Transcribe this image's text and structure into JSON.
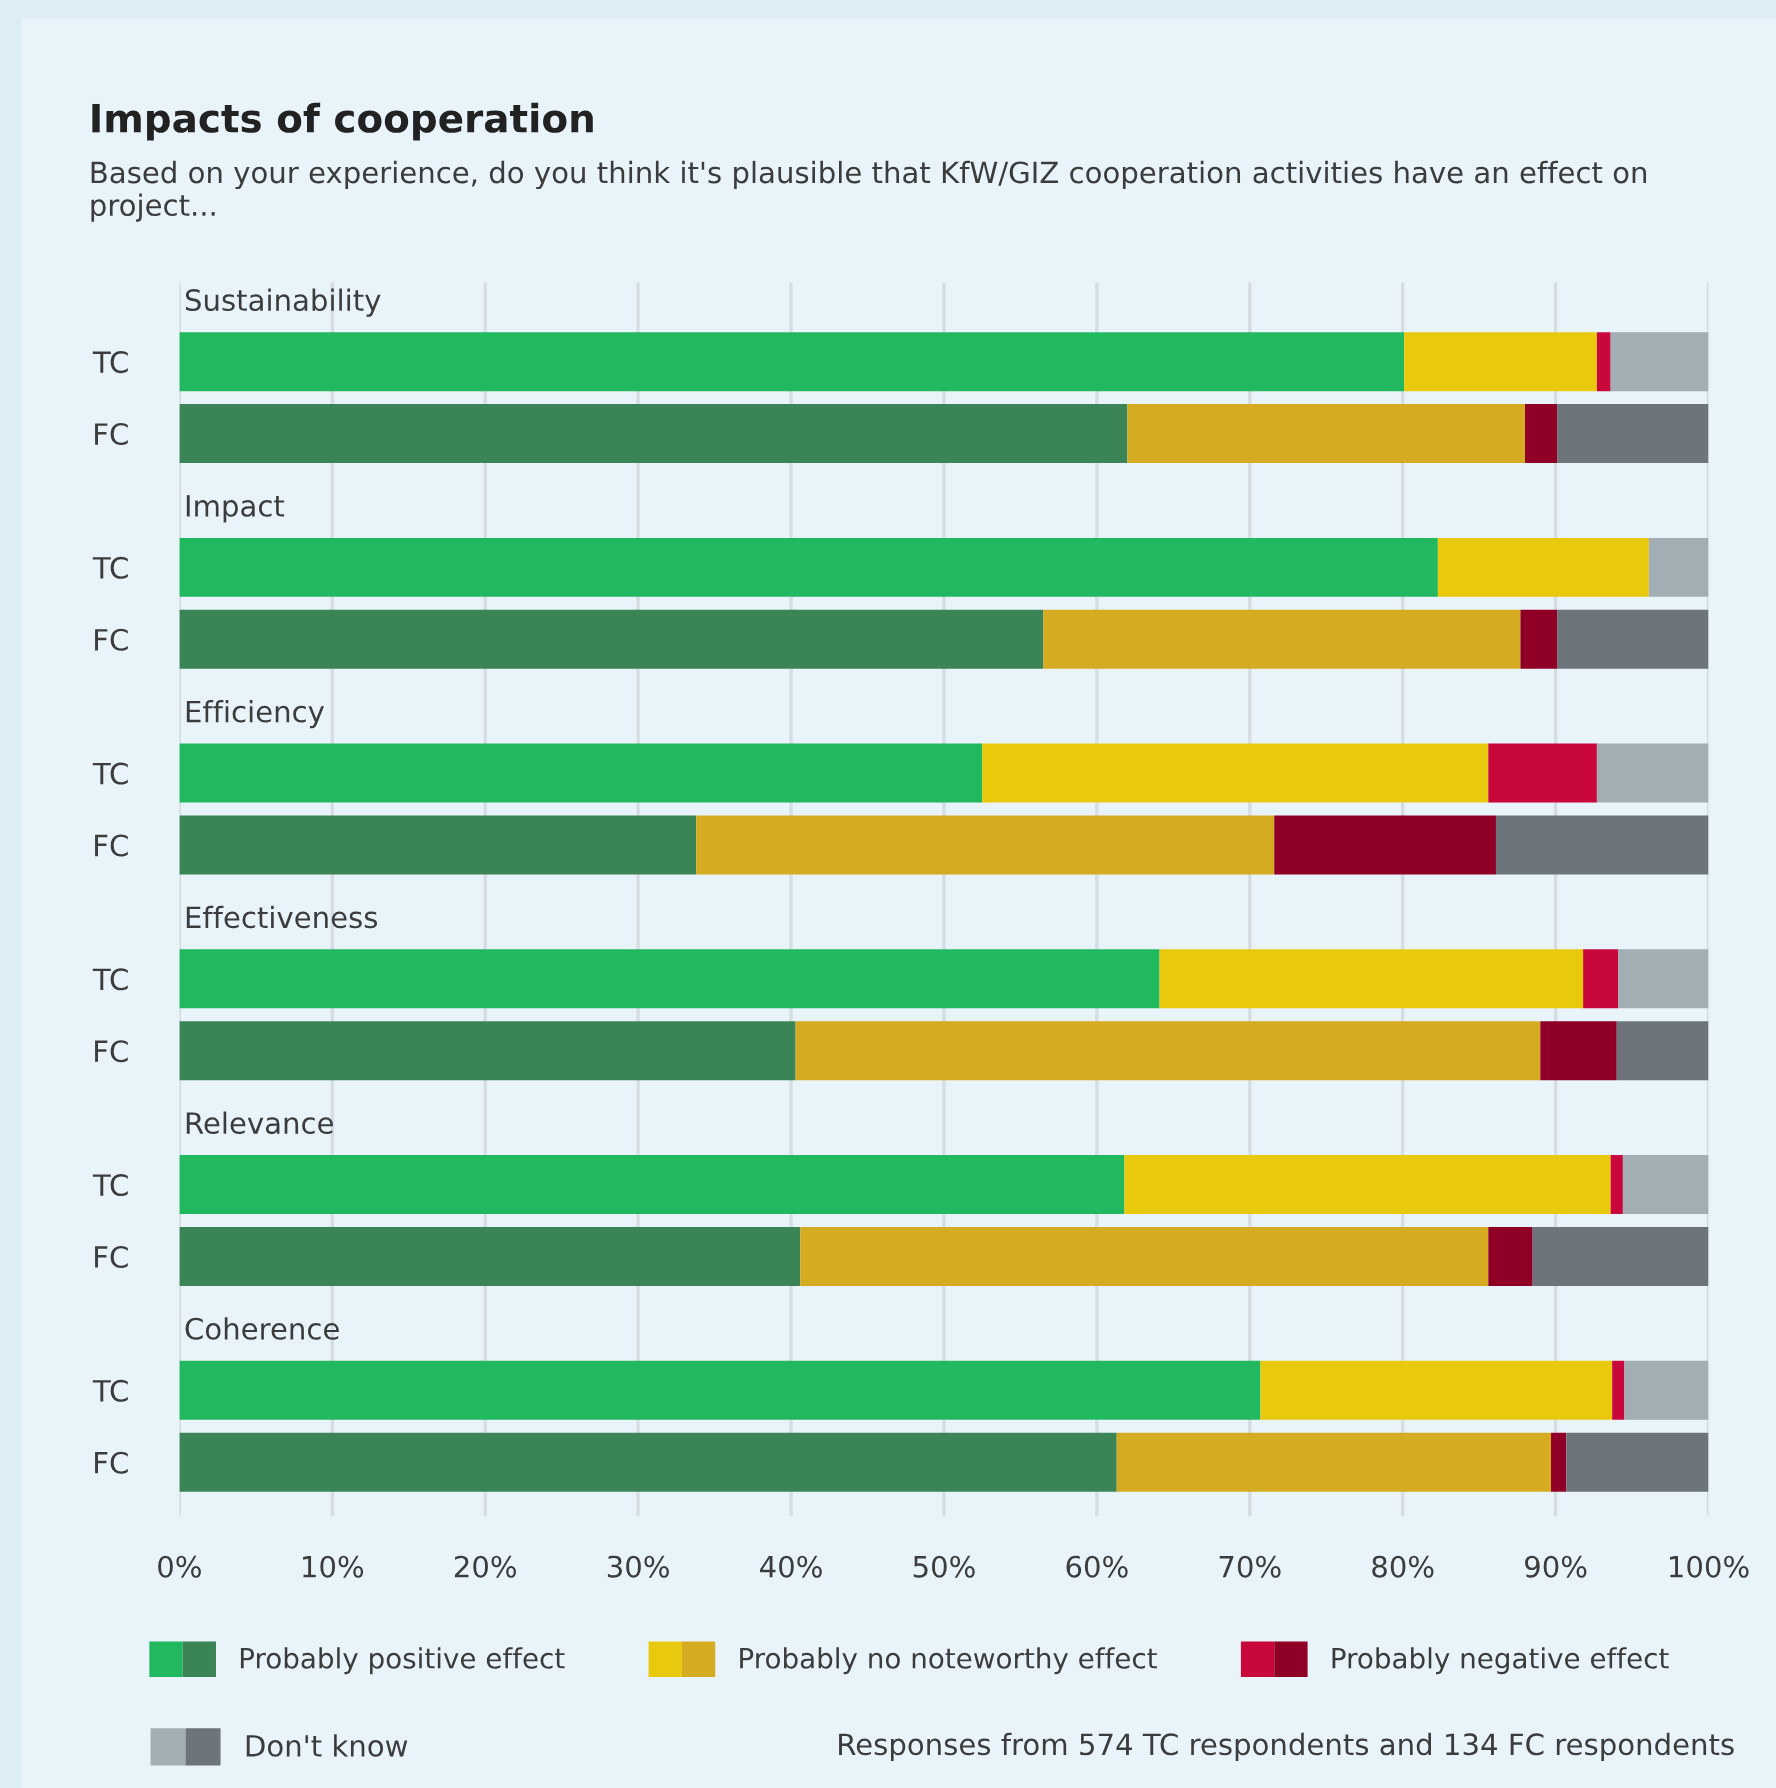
{
  "chart_data": {
    "type": "bar",
    "orientation": "horizontal",
    "stacked": true,
    "title": "Impacts of cooperation",
    "subtitle": "Based on your experience, do you think it's plausible that KfW/GIZ cooperation activities have an effect on project...",
    "categories": [
      "TC",
      "FC",
      "TC",
      "FC",
      "TC",
      "FC",
      "TC",
      "FC",
      "TC",
      "FC",
      "TC",
      "FC"
    ],
    "series": [
      {
        "name": "Probably positive effect",
        "colors": [
          "#22b860",
          "#3a8456",
          "#22b860",
          "#3a8456",
          "#22b860",
          "#3a8456",
          "#22b860",
          "#3a8456",
          "#22b860",
          "#3a8456",
          "#22b860",
          "#3a8456"
        ],
        "values": [
          80.1,
          62.0,
          82.3,
          56.5,
          52.5,
          33.8,
          64.1,
          40.3,
          61.8,
          40.6,
          70.7,
          61.3
        ]
      },
      {
        "name": "Probably no noteworthy effect",
        "colors": [
          "#e9c90e",
          "#d5ab22",
          "#e9c90e",
          "#d5ab22",
          "#e9c90e",
          "#d5ab22",
          "#e9c90e",
          "#d5ab22",
          "#e9c90e",
          "#d5ab22",
          "#e9c90e",
          "#d5ab22"
        ],
        "values": [
          12.6,
          26.0,
          13.8,
          31.2,
          33.1,
          37.8,
          27.7,
          48.7,
          31.8,
          45.0,
          23.0,
          28.4
        ]
      },
      {
        "name": "Probably negative effect",
        "colors": [
          "#c8083a",
          "#900026",
          "#c8083a",
          "#900026",
          "#c8083a",
          "#900026",
          "#c8083a",
          "#900026",
          "#c8083a",
          "#900026",
          "#c8083a",
          "#900026"
        ],
        "values": [
          0.9,
          2.1,
          0,
          2.4,
          7.1,
          14.5,
          2.3,
          5.0,
          0.8,
          2.9,
          0.8,
          1.0
        ]
      },
      {
        "name": "Don't know",
        "colors": [
          "#a2adb4",
          "#6d747c",
          "#a2adb4",
          "#6d747c",
          "#a2adb4",
          "#6d747c",
          "#a2adb4",
          "#6d747c",
          "#a2adb4",
          "#6d747c",
          "#a2adb4",
          "#6d747c"
        ],
        "values": [
          6.4,
          9.9,
          3.9,
          9.9,
          7.3,
          13.9,
          5.9,
          6.0,
          5.6,
          11.5,
          5.5,
          9.3
        ]
      }
    ],
    "xlim": [
      0,
      100
    ],
    "xticks": [
      {
        "value": 0,
        "label": "0%"
      },
      {
        "value": 10,
        "label": "10%"
      },
      {
        "value": 20,
        "label": "20%"
      },
      {
        "value": 30,
        "label": "30%"
      },
      {
        "value": 40,
        "label": "40%"
      },
      {
        "value": 50,
        "label": "50%"
      },
      {
        "value": 60,
        "label": "60%"
      },
      {
        "value": 70,
        "label": "70%"
      },
      {
        "value": 80,
        "label": "80%"
      },
      {
        "value": 90,
        "label": "90%"
      },
      {
        "value": 100,
        "label": "100%"
      }
    ],
    "grid": "x",
    "legend": "bottom",
    "annotations": [
      "Sustainability",
      "Impact",
      "Efficiency",
      "Effectiveness",
      "Relevance",
      "Coherence",
      "Responses from 574 TC respondents and 134 FC respondents"
    ]
  }
}
